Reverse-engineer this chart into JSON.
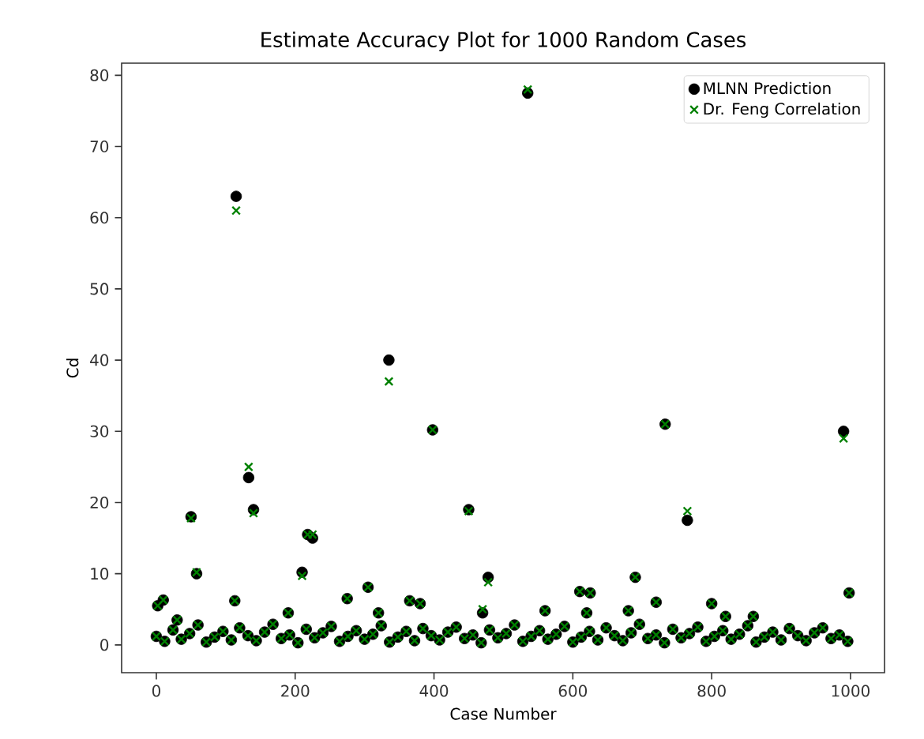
{
  "chart_data": {
    "type": "scatter",
    "title": "Estimate Accuracy Plot for 1000 Random Cases",
    "xlabel": "Case Number",
    "ylabel": "Cd",
    "xlim": [
      -50,
      1049
    ],
    "ylim": [
      -3.9,
      81.7
    ],
    "xticks": [
      0,
      200,
      400,
      600,
      800,
      1000
    ],
    "yticks": [
      0,
      10,
      20,
      30,
      40,
      50,
      60,
      70,
      80
    ],
    "legend": "top right",
    "x": [
      0,
      12,
      24,
      36,
      48,
      60,
      72,
      84,
      96,
      108,
      120,
      132,
      144,
      156,
      168,
      180,
      192,
      204,
      216,
      228,
      240,
      252,
      264,
      276,
      288,
      300,
      312,
      324,
      336,
      348,
      360,
      372,
      384,
      396,
      408,
      420,
      432,
      444,
      456,
      468,
      480,
      492,
      504,
      516,
      528,
      540,
      552,
      564,
      576,
      588,
      600,
      612,
      624,
      636,
      648,
      660,
      672,
      684,
      696,
      708,
      720,
      732,
      744,
      756,
      768,
      780,
      792,
      804,
      816,
      828,
      840,
      852,
      864,
      876,
      888,
      900,
      912,
      924,
      936,
      948,
      960,
      972,
      984,
      996,
      2,
      10,
      50,
      58,
      113,
      115,
      133,
      140,
      210,
      218,
      225,
      275,
      305,
      335,
      365,
      380,
      398,
      450,
      478,
      535,
      610,
      625,
      690,
      720,
      733,
      765,
      990,
      998,
      800,
      470,
      190,
      30,
      320,
      560,
      620,
      680,
      820,
      860
    ],
    "series": [
      {
        "name": "MLNN Prediction",
        "color": "#000000",
        "marker": "circle",
        "values": [
          1.2,
          0.5,
          2.1,
          0.8,
          1.6,
          2.8,
          0.4,
          1.1,
          1.9,
          0.7,
          2.4,
          1.3,
          0.6,
          1.8,
          2.9,
          0.9,
          1.4,
          0.3,
          2.2,
          1.0,
          1.7,
          2.6,
          0.5,
          1.2,
          2.0,
          0.8,
          1.5,
          2.7,
          0.4,
          1.1,
          1.9,
          0.6,
          2.3,
          1.3,
          0.7,
          1.8,
          2.5,
          0.9,
          1.4,
          0.3,
          2.1,
          1.0,
          1.6,
          2.8,
          0.5,
          1.2,
          2.0,
          0.8,
          1.5,
          2.6,
          0.4,
          1.1,
          1.9,
          0.7,
          2.4,
          1.3,
          0.6,
          1.7,
          2.9,
          0.9,
          1.4,
          0.3,
          2.2,
          1.0,
          1.6,
          2.5,
          0.5,
          1.2,
          2.0,
          0.8,
          1.5,
          2.7,
          0.4,
          1.1,
          1.8,
          0.7,
          2.3,
          1.3,
          0.6,
          1.7,
          2.4,
          0.9,
          1.4,
          0.5,
          5.5,
          6.3,
          18,
          10,
          6.2,
          63,
          23.5,
          19,
          10.2,
          15.5,
          15,
          6.5,
          8.1,
          40,
          6.2,
          5.8,
          30.2,
          19,
          9.5,
          77.5,
          7.5,
          7.3,
          9.5,
          6,
          31,
          17.5,
          30,
          7.3,
          5.8,
          4.5,
          4.5,
          3.5,
          4.5,
          4.8,
          4.5,
          4.8,
          4,
          4
        ]
      },
      {
        "name": "Dr. Feng Correlation",
        "color": "#008000",
        "marker": "cross",
        "values": [
          1.2,
          0.5,
          2.1,
          0.8,
          1.6,
          2.8,
          0.4,
          1.1,
          1.9,
          0.7,
          2.4,
          1.3,
          0.6,
          1.8,
          2.9,
          0.9,
          1.4,
          0.3,
          2.2,
          1.0,
          1.7,
          2.6,
          0.5,
          1.2,
          2.0,
          0.8,
          1.5,
          2.7,
          0.4,
          1.1,
          1.9,
          0.6,
          2.3,
          1.3,
          0.7,
          1.8,
          2.5,
          0.9,
          1.4,
          0.3,
          2.1,
          1.0,
          1.6,
          2.8,
          0.5,
          1.2,
          2.0,
          0.8,
          1.5,
          2.6,
          0.4,
          1.1,
          1.9,
          0.7,
          2.4,
          1.3,
          0.6,
          1.7,
          2.9,
          0.9,
          1.4,
          0.3,
          2.2,
          1.0,
          1.6,
          2.5,
          0.5,
          1.2,
          2.0,
          0.8,
          1.5,
          2.7,
          0.4,
          1.1,
          1.8,
          0.7,
          2.3,
          1.3,
          0.6,
          1.7,
          2.4,
          0.9,
          1.4,
          0.5,
          5.5,
          6.3,
          17.8,
          10.2,
          6.2,
          61,
          25,
          18.5,
          9.7,
          15.5,
          15.5,
          6.5,
          8.1,
          37,
          6.2,
          5.8,
          30.2,
          18.8,
          8.8,
          78,
          7.5,
          7.3,
          9.5,
          6,
          31,
          18.8,
          29,
          7.3,
          5.8,
          5,
          4.5,
          3.5,
          4.5,
          4.8,
          4.5,
          4.8,
          4,
          4
        ]
      }
    ]
  }
}
